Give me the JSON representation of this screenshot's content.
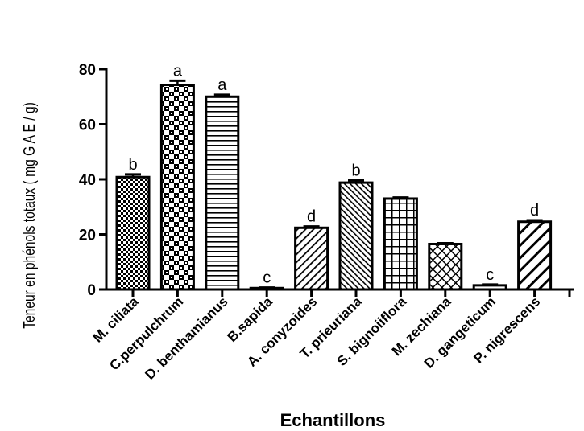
{
  "chart_data": {
    "type": "bar",
    "title": "",
    "xlabel": "Echantillons",
    "ylabel": "Teneur en phénols totaux ( mg G A E / g)",
    "ylim": [
      0,
      80
    ],
    "yticks": [
      "0",
      "20",
      "40",
      "60",
      "80"
    ],
    "grid": false,
    "categories": [
      "M. ciliata",
      "C.perpulchrum",
      "D. benthamianus",
      "B.sapida",
      "A. conyzoides",
      "T. prieuriana",
      "S. bignoiiflora",
      "M. zechiana",
      "D. gangeticum",
      "P. nigrescens"
    ],
    "values": [
      40.8,
      74.3,
      70.0,
      0.5,
      22.4,
      38.8,
      33.0,
      16.5,
      1.5,
      24.6
    ],
    "errors": [
      1.0,
      1.5,
      0.7,
      0.2,
      0.5,
      0.8,
      0.4,
      0.3,
      0.3,
      0.5
    ],
    "significance_letters": [
      "b",
      "a",
      "a",
      "c",
      "d",
      "b",
      "",
      "",
      "c",
      "d"
    ],
    "fill_patterns": [
      "dots",
      "checker",
      "hlines",
      "solid-white",
      "diag-right",
      "diag-left-dense",
      "grid",
      "diamond",
      "solid-white",
      "diag-right-wide"
    ]
  }
}
